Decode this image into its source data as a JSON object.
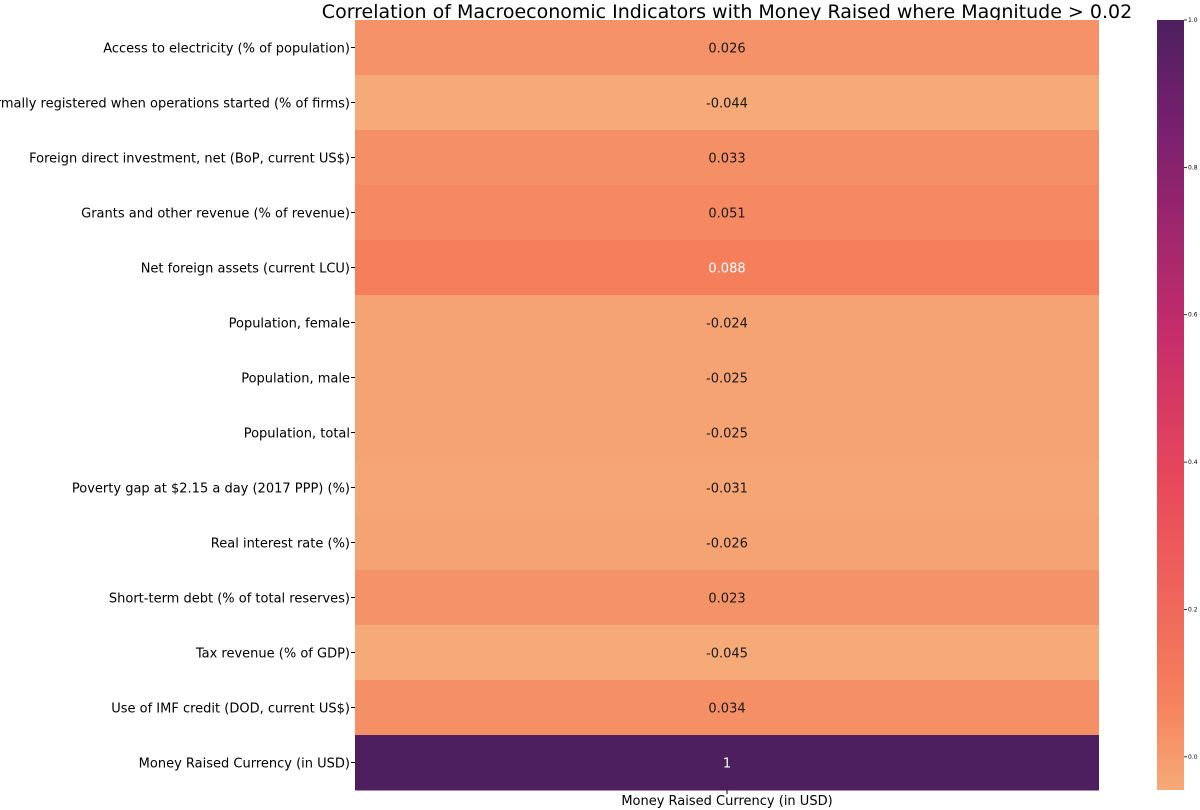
{
  "chart_data": {
    "type": "heatmap",
    "title": "Correlation of Macroeconomic Indicators with Money Raised where Magnitude > 0.02",
    "xlabel": "",
    "ylabel": "",
    "columns": [
      "Money Raised Currency (in USD)"
    ],
    "rows": [
      "Access to electricity (% of population)",
      "Firms formally registered when operations started (% of firms)",
      "Foreign direct investment, net (BoP, current US$)",
      "Grants and other revenue (% of revenue)",
      "Net foreign assets (current LCU)",
      "Population, female",
      "Population, male",
      "Population, total",
      "Poverty gap at $2.15 a day (2017 PPP) (%)",
      "Real interest rate (%)",
      "Short-term debt (% of total reserves)",
      "Tax revenue (% of GDP)",
      "Use of IMF credit (DOD, current US$)",
      "Money Raised Currency (in USD)"
    ],
    "values": [
      0.026,
      -0.044,
      0.033,
      0.051,
      0.088,
      -0.024,
      -0.025,
      -0.025,
      -0.031,
      -0.026,
      0.023,
      -0.045,
      0.034,
      1
    ],
    "annotations": [
      "0.026",
      "-0.044",
      "0.033",
      "0.051",
      "0.088",
      "-0.024",
      "-0.025",
      "-0.025",
      "-0.031",
      "-0.026",
      "0.023",
      "-0.045",
      "0.034",
      "1"
    ],
    "colormap": "flare",
    "colorbar": {
      "range": [
        -0.045,
        1.0
      ],
      "ticks": [
        "0.0",
        "0.2",
        "0.4",
        "0.6",
        "0.8",
        "1.0"
      ],
      "tick_values": [
        0.0,
        0.2,
        0.4,
        0.6,
        0.8,
        1.0
      ]
    },
    "colors": {
      "low": "#f6aa78",
      "mid_low": "#f57f5b",
      "mid": "#e8485b",
      "mid_high": "#c42c6b",
      "high_mid": "#7b216f",
      "high": "#4d1f5f"
    }
  }
}
